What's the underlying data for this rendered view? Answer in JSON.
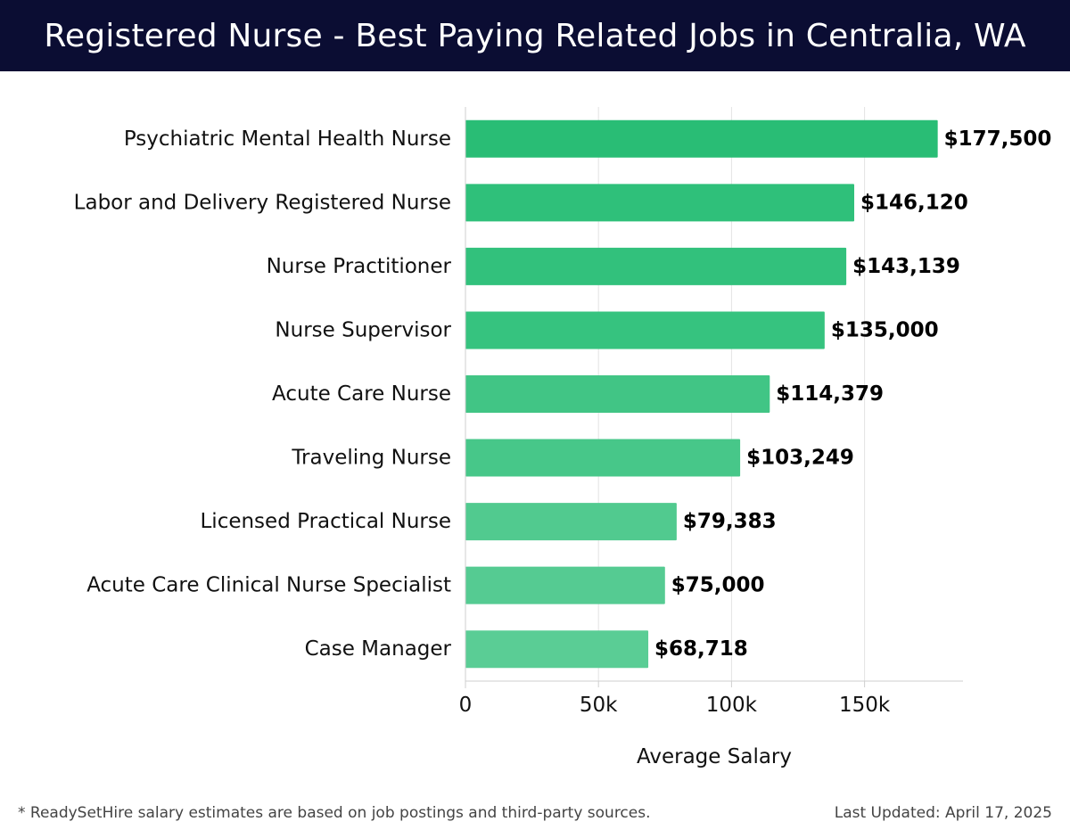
{
  "header": {
    "title": "Registered Nurse - Best Paying Related Jobs in Centralia, WA"
  },
  "chart_data": {
    "type": "bar",
    "orientation": "horizontal",
    "title": "Registered Nurse - Best Paying Related Jobs in Centralia, WA",
    "xlabel": "Average Salary",
    "ylabel": "",
    "xlim": [
      0,
      187000
    ],
    "x_ticks": [
      0,
      50000,
      100000,
      150000
    ],
    "x_tick_labels": [
      "0",
      "50k",
      "100k",
      "150k"
    ],
    "grid": true,
    "categories": [
      "Psychiatric Mental Health Nurse",
      "Labor and Delivery Registered Nurse",
      "Nurse Practitioner",
      "Nurse Supervisor",
      "Acute Care Nurse",
      "Traveling Nurse",
      "Licensed Practical Nurse",
      "Acute Care Clinical Nurse Specialist",
      "Case Manager"
    ],
    "values": [
      177500,
      146120,
      143139,
      135000,
      114379,
      103249,
      79383,
      75000,
      68718
    ],
    "value_labels": [
      "$177,500",
      "$146,120",
      "$143,139",
      "$135,000",
      "$114,379",
      "$103,249",
      "$79,383",
      "$75,000",
      "$68,718"
    ],
    "bar_colors": [
      "#29bd75",
      "#2fc07a",
      "#32c17c",
      "#36c37f",
      "#41c585",
      "#47c789",
      "#51ca8f",
      "#55cb92",
      "#5acd95"
    ]
  },
  "footer": {
    "note": "* ReadySetHire salary estimates are based on job postings and third-party sources.",
    "updated": "Last Updated: April 17, 2025"
  }
}
